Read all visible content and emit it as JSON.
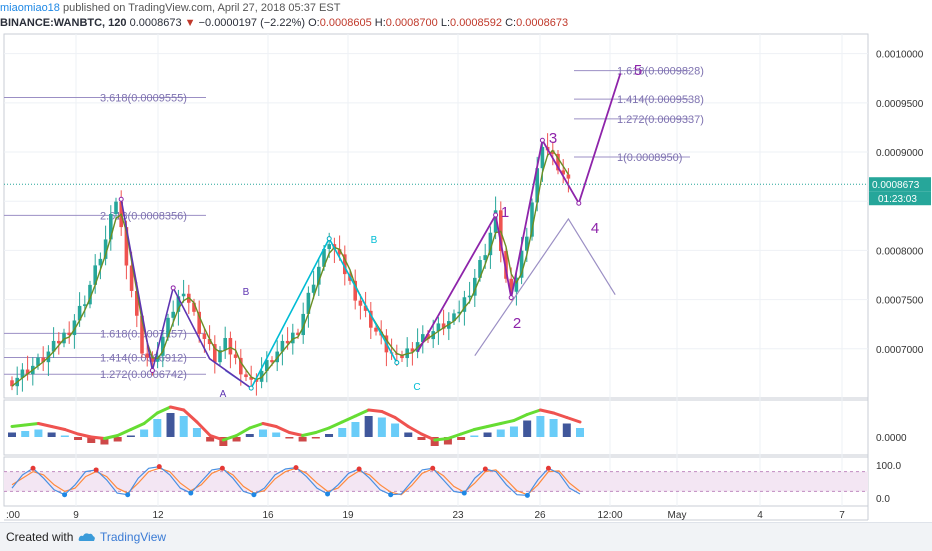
{
  "header": {
    "user": "miaomiao18",
    "published": "published on TradingView.com, April 27, 2018 05:37 EST",
    "symbol": "BINANCE:WANBTC, 120",
    "last": "0.0008673",
    "arrow": "▼",
    "change": "−0.0000197 (−2.22%)",
    "o_label": "O:",
    "o": "0.0008605",
    "h_label": "H:",
    "h": "0.0008700",
    "l_label": "L:",
    "l": "0.0008592",
    "c_label": "C:",
    "c": "0.0008673"
  },
  "footer": {
    "created_with": "Created with",
    "brand": "TradingView"
  },
  "colors": {
    "up": "#26a69a",
    "down": "#ef5350",
    "fib": "#9b8fc4",
    "wave": "#8e24aa",
    "abc": "#00bcd4",
    "ma": "#6b8e23",
    "grid": "#eef1f5",
    "text_axis": "#333333"
  },
  "chart_data": [
    {
      "type": "candlestick",
      "title": "",
      "price_axis": {
        "ticks": [
          "0.0010000",
          "0.0009500",
          "0.0009000",
          "0.0008500",
          "0.0008000",
          "0.0007500",
          "0.0007000"
        ],
        "ylim": [
          0.00065,
          0.00102
        ],
        "last_price_label": "0.0008673",
        "countdown_label": "01:23:03"
      },
      "time_axis": {
        "ticks": [
          "9",
          "12",
          "16",
          "19",
          "23",
          "26",
          "12:00",
          "May",
          "4",
          "7"
        ],
        "left_edge_label": ":00"
      },
      "close_path": [
        [
          0,
          0.000668
        ],
        [
          6,
          0.00069
        ],
        [
          11,
          0.00072
        ],
        [
          14,
          0.00075
        ],
        [
          18,
          0.00081
        ],
        [
          20,
          0.000852
        ],
        [
          23,
          0.00076
        ],
        [
          25,
          0.0007
        ],
        [
          27,
          0.000682
        ],
        [
          31,
          0.00074
        ],
        [
          33,
          0.000762
        ],
        [
          36,
          0.00072
        ],
        [
          39,
          0.00069
        ],
        [
          41,
          0.000705
        ],
        [
          44,
          0.00068
        ],
        [
          46,
          0.000665
        ],
        [
          50,
          0.00069
        ],
        [
          55,
          0.00072
        ],
        [
          58,
          0.00077
        ],
        [
          61,
          0.00081
        ],
        [
          63,
          0.00079
        ],
        [
          66,
          0.000755
        ],
        [
          68,
          0.000735
        ],
        [
          72,
          0.0007
        ],
        [
          74,
          0.000688
        ],
        [
          78,
          0.000708
        ],
        [
          81,
          0.000718
        ],
        [
          85,
          0.00073
        ],
        [
          88,
          0.00076
        ],
        [
          91,
          0.0008
        ],
        [
          93,
          0.000836
        ],
        [
          95,
          0.00077
        ],
        [
          96,
          0.000752
        ],
        [
          99,
          0.00082
        ],
        [
          101,
          0.00088
        ],
        [
          102,
          0.00091
        ],
        [
          105,
          0.000885
        ],
        [
          107,
          0.000867
        ]
      ],
      "fibonacci_levels": [
        {
          "label": "3.618(0.0009555)",
          "price": 0.0009555
        },
        {
          "label": "2.618(0.0008356)",
          "price": 0.0008356
        },
        {
          "label": "1.618(0.0007157)",
          "price": 0.0007157
        },
        {
          "label": "1.414(0.0006912)",
          "price": 0.0006912
        },
        {
          "label": "1.272(0.0006742)",
          "price": 0.0006742
        },
        {
          "label": "1.618(0.0009828)",
          "price": 0.0009828
        },
        {
          "label": "1.414(0.0009538)",
          "price": 0.0009538
        },
        {
          "label": "1.272(0.0009337)",
          "price": 0.0009337
        },
        {
          "label": "1(0.0008950)",
          "price": 0.000895
        }
      ],
      "wave_labels": [
        "1",
        "2",
        "3",
        "4",
        "5",
        "A",
        "B",
        "B",
        "C"
      ]
    },
    {
      "type": "area",
      "title": "",
      "y_ticks": [
        "0.0000"
      ],
      "series": [
        {
          "values": [
            3,
            4,
            5,
            3,
            1,
            -2,
            -4,
            -5,
            -3,
            1,
            5,
            12,
            16,
            14,
            6,
            -3,
            -6,
            -3,
            2,
            5,
            3,
            -1,
            -3,
            -1,
            2,
            6,
            10,
            14,
            13,
            9,
            3,
            -2,
            -6,
            -5,
            -2,
            1,
            3,
            5,
            7,
            11,
            14,
            12,
            9,
            6
          ]
        }
      ]
    },
    {
      "type": "line",
      "title": "",
      "y_ticks": [
        "100.0",
        "0.0"
      ],
      "ylim": [
        0,
        100
      ],
      "series": [
        {
          "values": [
            30,
            70,
            90,
            60,
            25,
            10,
            40,
            80,
            85,
            55,
            15,
            10,
            60,
            90,
            95,
            70,
            30,
            15,
            50,
            85,
            90,
            60,
            20,
            10,
            30,
            70,
            88,
            92,
            65,
            30,
            12,
            40,
            75,
            88,
            60,
            25,
            10,
            12,
            50,
            85,
            90,
            55,
            20,
            15,
            60,
            88,
            80,
            40,
            10,
            8,
            55,
            90,
            75,
            30,
            12
          ]
        },
        {
          "values": [
            40,
            60,
            80,
            70,
            40,
            20,
            30,
            65,
            80,
            65,
            30,
            15,
            45,
            80,
            90,
            80,
            45,
            22,
            40,
            75,
            88,
            70,
            35,
            15,
            22,
            58,
            80,
            90,
            75,
            45,
            20,
            30,
            62,
            82,
            70,
            40,
            18,
            10,
            38,
            75,
            88,
            68,
            35,
            18,
            45,
            80,
            85,
            55,
            22,
            10,
            40,
            80,
            82,
            45,
            20
          ]
        }
      ]
    }
  ]
}
